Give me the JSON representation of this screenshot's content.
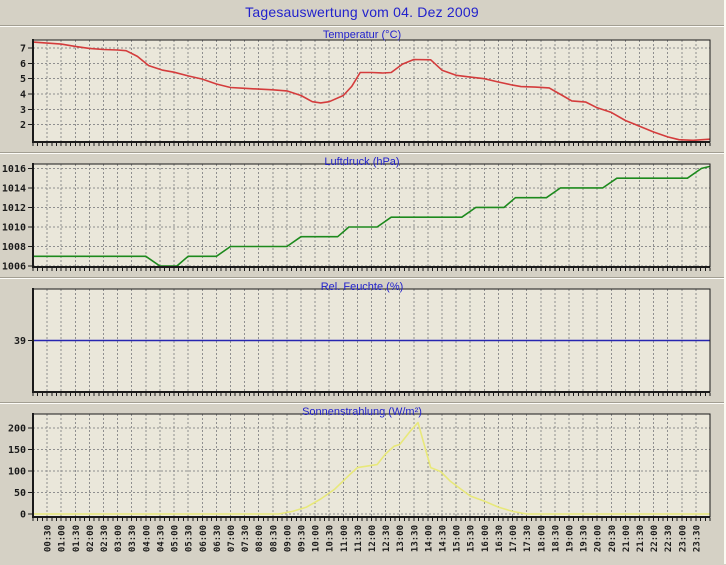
{
  "page": {
    "title": "Tagesauswertung vom 04. Dez 2009",
    "colors": {
      "background": "#d5d1c5",
      "plot_background": "#eae7da",
      "grid": "#8f8f8f",
      "axis": "#1a1a1a",
      "title_blue": "#2222cc",
      "tick_label": "#1a1a1a"
    }
  },
  "x_axis": {
    "hours_start": 0,
    "hours_end": 24,
    "gridline_interval_hours": 0.5,
    "minor_tick_interval_minutes": 10,
    "tick_labels": [
      "00:30",
      "01:00",
      "01:30",
      "02:00",
      "02:30",
      "03:00",
      "03:30",
      "04:00",
      "04:30",
      "05:00",
      "05:30",
      "06:00",
      "06:30",
      "07:00",
      "07:30",
      "08:00",
      "08:30",
      "09:00",
      "09:30",
      "10:00",
      "10:30",
      "11:00",
      "11:30",
      "12:00",
      "12:30",
      "13:00",
      "13:30",
      "14:00",
      "14:30",
      "15:00",
      "15:30",
      "16:00",
      "16:30",
      "17:00",
      "17:30",
      "18:00",
      "18:30",
      "19:00",
      "19:30",
      "20:00",
      "20:30",
      "21:00",
      "21:30",
      "22:00",
      "22:30",
      "23:00",
      "23:30"
    ]
  },
  "chart_data": [
    {
      "type": "line",
      "title": "Temperatur (°C)",
      "line_color": "#d43c3c",
      "ylim": [
        0.87,
        7.52
      ],
      "yticks": [
        7,
        6,
        5,
        4,
        3,
        2
      ],
      "hgrid": true,
      "x_unit": "hour_of_day",
      "points": [
        [
          0,
          7.38
        ],
        [
          0.5,
          7.32
        ],
        [
          1,
          7.25
        ],
        [
          1.5,
          7.1
        ],
        [
          2,
          6.97
        ],
        [
          2.5,
          6.9
        ],
        [
          3,
          6.87
        ],
        [
          3.3,
          6.82
        ],
        [
          3.7,
          6.45
        ],
        [
          4.1,
          5.85
        ],
        [
          4.6,
          5.55
        ],
        [
          5,
          5.42
        ],
        [
          5.5,
          5.18
        ],
        [
          6,
          4.97
        ],
        [
          6.5,
          4.65
        ],
        [
          7,
          4.42
        ],
        [
          7.5,
          4.37
        ],
        [
          8,
          4.32
        ],
        [
          8.5,
          4.27
        ],
        [
          9,
          4.2
        ],
        [
          9.5,
          3.9
        ],
        [
          9.9,
          3.5
        ],
        [
          10.2,
          3.42
        ],
        [
          10.5,
          3.5
        ],
        [
          11,
          3.9
        ],
        [
          11.3,
          4.5
        ],
        [
          11.6,
          5.4
        ],
        [
          12,
          5.4
        ],
        [
          12.4,
          5.37
        ],
        [
          12.7,
          5.4
        ],
        [
          13.1,
          5.95
        ],
        [
          13.5,
          6.25
        ],
        [
          14.1,
          6.23
        ],
        [
          14.5,
          5.55
        ],
        [
          15,
          5.22
        ],
        [
          15.5,
          5.1
        ],
        [
          16,
          5.0
        ],
        [
          16.5,
          4.78
        ],
        [
          17,
          4.58
        ],
        [
          17.3,
          4.48
        ],
        [
          17.8,
          4.45
        ],
        [
          18.3,
          4.4
        ],
        [
          18.8,
          3.87
        ],
        [
          19.1,
          3.55
        ],
        [
          19.6,
          3.47
        ],
        [
          20,
          3.1
        ],
        [
          20.5,
          2.8
        ],
        [
          21,
          2.27
        ],
        [
          21.5,
          1.9
        ],
        [
          22,
          1.52
        ],
        [
          22.5,
          1.2
        ],
        [
          22.9,
          1.02
        ],
        [
          23.4,
          0.98
        ],
        [
          24,
          1.05
        ]
      ]
    },
    {
      "type": "line",
      "title": "Luftdruck (hPa)",
      "line_color": "#1d8a1d",
      "ylim": [
        1005.9,
        1016.45
      ],
      "yticks": [
        1016,
        1014,
        1012,
        1010,
        1008,
        1006
      ],
      "hgrid": true,
      "x_unit": "hour_of_day",
      "points": [
        [
          0,
          1007
        ],
        [
          4,
          1007
        ],
        [
          4.5,
          1006
        ],
        [
          5.1,
          1006
        ],
        [
          5.5,
          1007
        ],
        [
          6.5,
          1007
        ],
        [
          7,
          1008
        ],
        [
          9,
          1008
        ],
        [
          9.5,
          1009
        ],
        [
          10.8,
          1009
        ],
        [
          11.2,
          1010
        ],
        [
          12.2,
          1010
        ],
        [
          12.7,
          1011
        ],
        [
          15.2,
          1011
        ],
        [
          15.7,
          1012
        ],
        [
          16.7,
          1012
        ],
        [
          17.1,
          1013
        ],
        [
          18.2,
          1013
        ],
        [
          18.7,
          1014
        ],
        [
          20.2,
          1014
        ],
        [
          20.7,
          1015
        ],
        [
          23.2,
          1015
        ],
        [
          23.7,
          1016
        ],
        [
          24,
          1016.2
        ]
      ]
    },
    {
      "type": "line",
      "title": "Rel. Feuchte (%)",
      "line_color": "#2626b0",
      "ylim": [
        14,
        64
      ],
      "yticks": [
        39
      ],
      "hgrid": false,
      "x_unit": "hour_of_day",
      "points": [
        [
          0,
          39
        ],
        [
          24,
          39
        ]
      ]
    },
    {
      "type": "line",
      "title": "Sonnenstrahlung (W/m²)",
      "line_color": "#e8e87a",
      "ylim": [
        -7,
        233
      ],
      "yticks": [
        200,
        150,
        100,
        50,
        0
      ],
      "hgrid": true,
      "x_unit": "hour_of_day",
      "points": [
        [
          0,
          0
        ],
        [
          8.7,
          0
        ],
        [
          9.2,
          6
        ],
        [
          9.7,
          16
        ],
        [
          10.2,
          35
        ],
        [
          10.7,
          58
        ],
        [
          11.2,
          90
        ],
        [
          11.5,
          108
        ],
        [
          12.2,
          115
        ],
        [
          12.5,
          140
        ],
        [
          12.8,
          158
        ],
        [
          13.0,
          162
        ],
        [
          13.4,
          195
        ],
        [
          13.65,
          213
        ],
        [
          14.1,
          108
        ],
        [
          14.45,
          99
        ],
        [
          14.8,
          76
        ],
        [
          15.5,
          42
        ],
        [
          16,
          30
        ],
        [
          16.5,
          16
        ],
        [
          17,
          6
        ],
        [
          17.5,
          0
        ],
        [
          24,
          0
        ]
      ]
    }
  ]
}
